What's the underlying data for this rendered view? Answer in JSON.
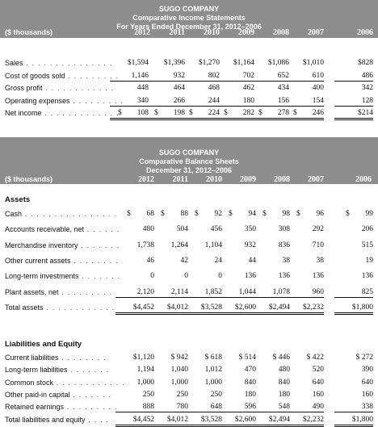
{
  "income": {
    "company": "SUGO COMPANY",
    "title": "Comparative Income Statements",
    "period": "For Years Ended December 31, 2012–2006",
    "unit": "($ thousands)",
    "years": [
      "2012",
      "2011",
      "2010",
      "2009",
      "2008",
      "2007",
      "2006"
    ],
    "rows": [
      {
        "label": "Sales",
        "values": [
          "$1,594",
          "$1,396",
          "$1,270",
          "$1,164",
          "$1,086",
          "$1,010",
          "$828"
        ]
      },
      {
        "label": "Cost of goods sold",
        "values": [
          "1,146",
          "932",
          "802",
          "702",
          "652",
          "610",
          "486"
        ]
      },
      {
        "label": "Gross profit",
        "values": [
          "448",
          "464",
          "468",
          "462",
          "434",
          "400",
          "342"
        ]
      },
      {
        "label": "Operating expenses",
        "values": [
          "340",
          "266",
          "244",
          "180",
          "156",
          "154",
          "128"
        ]
      },
      {
        "label": "Net income",
        "values": [
          "108",
          "198",
          "224",
          "282",
          "278",
          "246",
          "$214"
        ]
      }
    ]
  },
  "balance": {
    "company": "SUGO COMPANY",
    "title": "Comparative Balance Sheets",
    "period": "December 31, 2012–2006",
    "unit": "($ thousands)",
    "years": [
      "2012",
      "2011",
      "2010",
      "2009",
      "2008",
      "2007",
      "2006"
    ],
    "assets_heading": "Assets",
    "liab_heading": "Liabilities and Equity",
    "assets": [
      {
        "label": "Cash",
        "values": [
          "68",
          "88",
          "92",
          "94",
          "98",
          "96",
          "99"
        ]
      },
      {
        "label": "Accounts receivable, net",
        "values": [
          "480",
          "504",
          "456",
          "350",
          "308",
          "292",
          "206"
        ]
      },
      {
        "label": "Merchandise inventory",
        "values": [
          "1,738",
          "1,264",
          "1,104",
          "932",
          "836",
          "710",
          "515"
        ]
      },
      {
        "label": "Other current assets",
        "values": [
          "46",
          "42",
          "24",
          "44",
          "38",
          "38",
          "19"
        ]
      },
      {
        "label": "Long-term investments",
        "values": [
          "0",
          "0",
          "0",
          "136",
          "136",
          "136",
          "136"
        ]
      },
      {
        "label": "Plant assets, net",
        "values": [
          "2,120",
          "2,114",
          "1,852",
          "1,044",
          "1,078",
          "960",
          "825"
        ]
      },
      {
        "label": "Total assets",
        "values": [
          "$4,452",
          "$4,012",
          "$3,528",
          "$2,600",
          "$2,494",
          "$2,232",
          "$1,800"
        ]
      }
    ],
    "liabilities": [
      {
        "label": "Current liabilities",
        "values": [
          "$1,120",
          "$ 942",
          "$ 618",
          "$ 514",
          "$ 446",
          "$ 422",
          "$ 272"
        ]
      },
      {
        "label": "Long-term liabilities",
        "values": [
          "1,194",
          "1,040",
          "1,012",
          "470",
          "480",
          "520",
          "390"
        ]
      },
      {
        "label": "Common stock",
        "values": [
          "1,000",
          "1,000",
          "1,000",
          "840",
          "840",
          "640",
          "640"
        ]
      },
      {
        "label": "Other paid-in capital",
        "values": [
          "250",
          "250",
          "250",
          "180",
          "180",
          "160",
          "160"
        ]
      },
      {
        "label": "Retained earnings",
        "values": [
          "888",
          "780",
          "648",
          "596",
          "548",
          "490",
          "338"
        ]
      },
      {
        "label": "Total liabilities and equity",
        "values": [
          "$4,452",
          "$4,012",
          "$3,528",
          "$2,600",
          "$2,494",
          "$2,232",
          "$1,800"
        ]
      }
    ],
    "dollar_sign": "$",
    "net_income_dollar": "$"
  }
}
